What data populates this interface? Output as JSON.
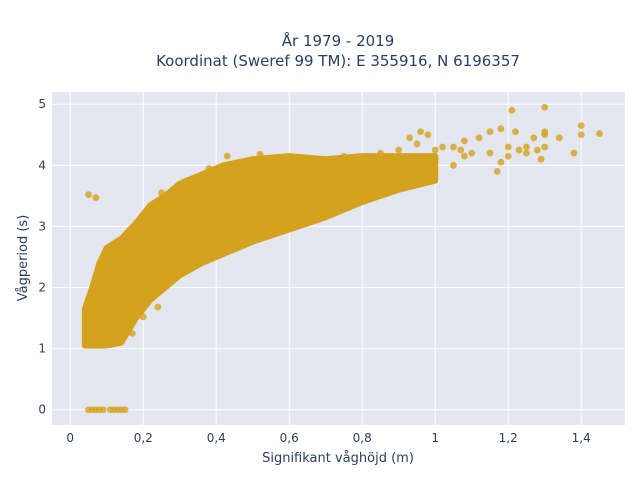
{
  "chart_data": {
    "type": "scatter",
    "title_line1": "År 1979 - 2019",
    "title_line2": "Koordinat (Sweref 99 TM): E 355916, N 6196357",
    "xlabel": "Signifikant våghöjd (m)",
    "ylabel": "Vågperiod (s)",
    "xlim": [
      -0.05,
      1.52
    ],
    "ylim": [
      -0.25,
      5.2
    ],
    "x_ticks": [
      0,
      0.2,
      0.4,
      0.6,
      0.8,
      1.0,
      1.2,
      1.4
    ],
    "x_tick_labels": [
      "0",
      "0,2",
      "0,4",
      "0,6",
      "0,8",
      "1",
      "1,2",
      "1,4"
    ],
    "y_ticks": [
      0,
      1,
      2,
      3,
      4,
      5
    ],
    "y_tick_labels": [
      "0",
      "1",
      "2",
      "3",
      "4",
      "5"
    ],
    "grid": true,
    "marker_color": "#d4a21e",
    "plot_background": "#e5e7f0",
    "dense_band": [
      {
        "x": 0.04,
        "y_low": 1.05,
        "y_high": 1.65
      },
      {
        "x": 0.06,
        "y_low": 1.05,
        "y_high": 2.0
      },
      {
        "x": 0.08,
        "y_low": 1.05,
        "y_high": 2.4
      },
      {
        "x": 0.1,
        "y_low": 1.05,
        "y_high": 2.65
      },
      {
        "x": 0.14,
        "y_low": 1.1,
        "y_high": 2.8
      },
      {
        "x": 0.18,
        "y_low": 1.5,
        "y_high": 3.05
      },
      {
        "x": 0.22,
        "y_low": 1.8,
        "y_high": 3.35
      },
      {
        "x": 0.26,
        "y_low": 2.0,
        "y_high": 3.5
      },
      {
        "x": 0.3,
        "y_low": 2.2,
        "y_high": 3.7
      },
      {
        "x": 0.36,
        "y_low": 2.4,
        "y_high": 3.85
      },
      {
        "x": 0.42,
        "y_low": 2.55,
        "y_high": 4.0
      },
      {
        "x": 0.5,
        "y_low": 2.75,
        "y_high": 4.1
      },
      {
        "x": 0.6,
        "y_low": 2.95,
        "y_high": 4.15
      },
      {
        "x": 0.7,
        "y_low": 3.15,
        "y_high": 4.1
      },
      {
        "x": 0.8,
        "y_low": 3.4,
        "y_high": 4.15
      },
      {
        "x": 0.9,
        "y_low": 3.6,
        "y_high": 4.15
      },
      {
        "x": 1.0,
        "y_low": 3.75,
        "y_high": 4.15
      }
    ],
    "points": [
      {
        "x": 0.05,
        "y": 3.52
      },
      {
        "x": 0.07,
        "y": 3.47
      },
      {
        "x": 0.05,
        "y": 0.0
      },
      {
        "x": 0.06,
        "y": 0.0
      },
      {
        "x": 0.07,
        "y": 0.0
      },
      {
        "x": 0.08,
        "y": 0.0
      },
      {
        "x": 0.09,
        "y": 0.0
      },
      {
        "x": 0.11,
        "y": 0.0
      },
      {
        "x": 0.12,
        "y": 0.0
      },
      {
        "x": 0.13,
        "y": 0.0
      },
      {
        "x": 0.14,
        "y": 0.0
      },
      {
        "x": 0.15,
        "y": 0.0
      },
      {
        "x": 0.13,
        "y": 1.38
      },
      {
        "x": 0.15,
        "y": 1.28
      },
      {
        "x": 0.16,
        "y": 1.35
      },
      {
        "x": 0.17,
        "y": 1.25
      },
      {
        "x": 0.2,
        "y": 1.52
      },
      {
        "x": 0.24,
        "y": 1.68
      },
      {
        "x": 0.25,
        "y": 3.55
      },
      {
        "x": 0.32,
        "y": 3.75
      },
      {
        "x": 0.38,
        "y": 3.95
      },
      {
        "x": 0.43,
        "y": 4.15
      },
      {
        "x": 0.52,
        "y": 4.18
      },
      {
        "x": 0.58,
        "y": 4.05
      },
      {
        "x": 0.55,
        "y": 4.12
      },
      {
        "x": 0.65,
        "y": 4.1
      },
      {
        "x": 0.75,
        "y": 4.15
      },
      {
        "x": 0.85,
        "y": 4.2
      },
      {
        "x": 0.9,
        "y": 4.25
      },
      {
        "x": 0.95,
        "y": 4.35
      },
      {
        "x": 1.0,
        "y": 4.1
      },
      {
        "x": 1.0,
        "y": 4.25
      },
      {
        "x": 1.02,
        "y": 4.3
      },
      {
        "x": 1.05,
        "y": 4.0
      },
      {
        "x": 1.05,
        "y": 4.3
      },
      {
        "x": 1.07,
        "y": 4.25
      },
      {
        "x": 1.08,
        "y": 4.15
      },
      {
        "x": 1.08,
        "y": 4.4
      },
      {
        "x": 1.1,
        "y": 4.2
      },
      {
        "x": 1.12,
        "y": 4.45
      },
      {
        "x": 1.15,
        "y": 4.2
      },
      {
        "x": 1.15,
        "y": 4.55
      },
      {
        "x": 1.17,
        "y": 3.9
      },
      {
        "x": 1.18,
        "y": 4.05
      },
      {
        "x": 1.18,
        "y": 4.6
      },
      {
        "x": 1.2,
        "y": 4.15
      },
      {
        "x": 1.2,
        "y": 4.3
      },
      {
        "x": 1.22,
        "y": 4.55
      },
      {
        "x": 1.23,
        "y": 4.25
      },
      {
        "x": 1.25,
        "y": 4.2
      },
      {
        "x": 1.25,
        "y": 4.3
      },
      {
        "x": 1.27,
        "y": 4.45
      },
      {
        "x": 1.28,
        "y": 4.25
      },
      {
        "x": 1.3,
        "y": 4.5
      },
      {
        "x": 1.3,
        "y": 4.55
      },
      {
        "x": 1.3,
        "y": 4.95
      },
      {
        "x": 1.3,
        "y": 4.3
      },
      {
        "x": 1.29,
        "y": 4.1
      },
      {
        "x": 1.21,
        "y": 4.9
      },
      {
        "x": 1.34,
        "y": 4.45
      },
      {
        "x": 1.38,
        "y": 4.2
      },
      {
        "x": 1.4,
        "y": 4.65
      },
      {
        "x": 1.4,
        "y": 4.5
      },
      {
        "x": 1.45,
        "y": 4.52
      },
      {
        "x": 0.93,
        "y": 4.45
      },
      {
        "x": 0.96,
        "y": 4.55
      },
      {
        "x": 0.98,
        "y": 4.5
      }
    ]
  }
}
